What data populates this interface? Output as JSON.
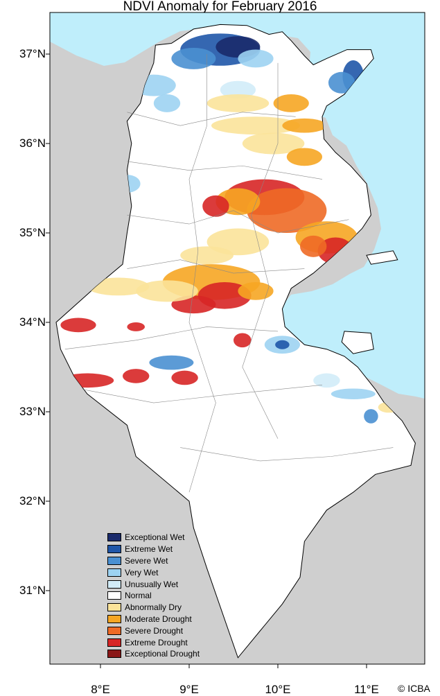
{
  "title": "NDVI Anomaly for February 2016",
  "map": {
    "colors": {
      "land_outside": "#cfcfcf",
      "sea": "#bfeefb",
      "country": "#ffffff",
      "border": "#555555"
    },
    "lat_ticks": [
      {
        "label": "37°N",
        "value": 37
      },
      {
        "label": "36°N",
        "value": 36
      },
      {
        "label": "35°N",
        "value": 35
      },
      {
        "label": "34°N",
        "value": 34
      },
      {
        "label": "33°N",
        "value": 33
      },
      {
        "label": "32°N",
        "value": 32
      },
      {
        "label": "31°N",
        "value": 31
      }
    ],
    "lon_ticks": [
      {
        "label": "8°E",
        "value": 8
      },
      {
        "label": "9°E",
        "value": 9
      },
      {
        "label": "10°E",
        "value": 10
      },
      {
        "label": "11°E",
        "value": 11
      }
    ],
    "extent": {
      "lon": [
        7.45,
        11.65
      ],
      "lat": [
        30.15,
        37.45
      ]
    }
  },
  "legend": [
    {
      "label": "Exceptional Wet",
      "color": "#1a2a6b"
    },
    {
      "label": "Extreme Wet",
      "color": "#1f56a8"
    },
    {
      "label": "Severe Wet",
      "color": "#4a90d2"
    },
    {
      "label": "Very Wet",
      "color": "#9dd3f2"
    },
    {
      "label": "Unusually Wet",
      "color": "#d2ecf8"
    },
    {
      "label": "Normal",
      "color": "#ffffff"
    },
    {
      "label": "Abnormally Dry",
      "color": "#fbe39a"
    },
    {
      "label": "Moderate Drought",
      "color": "#f6a623"
    },
    {
      "label": "Severe Drought",
      "color": "#ee6a26"
    },
    {
      "label": "Extreme Drought",
      "color": "#d72626"
    },
    {
      "label": "Exceptional Drought",
      "color": "#8b1717"
    }
  ],
  "copyright": "© ICBA"
}
